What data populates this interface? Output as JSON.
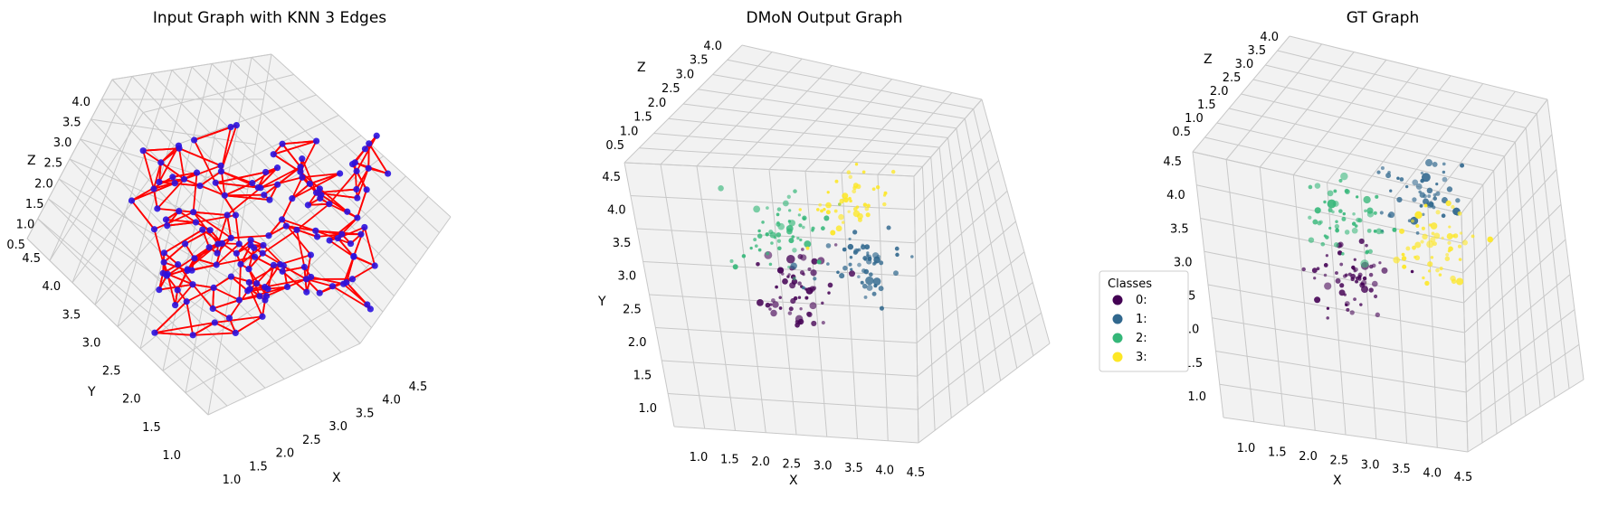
{
  "colors": {
    "background": "#ffffff",
    "pane": "#f2f2f2",
    "grid": "#c8c8c8",
    "edge": "#ff0000",
    "node": "#2a12e0",
    "class_colors": [
      "#440154",
      "#31688e",
      "#35b779",
      "#fde725"
    ]
  },
  "chart_data": [
    {
      "type": "scatter",
      "subtype": "3d-graph",
      "title": "Input Graph with KNN 3 Edges",
      "xlabel": "X",
      "ylabel": "Y",
      "zlabel": "Z",
      "x_ticks": [
        "1.0",
        "1.5",
        "2.0",
        "2.5",
        "3.0",
        "3.5",
        "4.0",
        "4.5"
      ],
      "y_ticks": [
        "1.0",
        "1.5",
        "2.0",
        "2.5",
        "3.0",
        "3.5",
        "4.0",
        "4.5"
      ],
      "z_ticks": [
        "0.5",
        "1.0",
        "1.5",
        "2.0",
        "2.5",
        "3.0",
        "3.5",
        "4.0"
      ],
      "xlim": [
        0.8,
        4.7
      ],
      "ylim": [
        0.8,
        4.7
      ],
      "zlim": [
        0.3,
        4.2
      ],
      "edges": "knn-3",
      "node_count": 150
    },
    {
      "type": "scatter",
      "subtype": "3d",
      "title": "DMoN Output Graph",
      "xlabel": "X",
      "ylabel": "Y",
      "zlabel": "Z",
      "x_ticks": [
        "1.0",
        "1.5",
        "2.0",
        "2.5",
        "3.0",
        "3.5",
        "4.0",
        "4.5"
      ],
      "y_ticks": [
        "1.0",
        "1.5",
        "2.0",
        "2.5",
        "3.0",
        "3.5",
        "4.0",
        "4.5"
      ],
      "z_ticks": [
        "0.5",
        "1.0",
        "1.5",
        "2.0",
        "2.5",
        "3.0",
        "3.5",
        "4.0"
      ],
      "xlim": [
        0.8,
        4.7
      ],
      "ylim": [
        0.8,
        4.7
      ],
      "zlim": [
        0.3,
        4.2
      ],
      "legend": {
        "title": "Classes",
        "placement": "right",
        "entries": [
          "0:",
          "1:",
          "2:",
          "3:"
        ]
      },
      "series": [
        {
          "name": "0:",
          "points": 60,
          "center": [
            2.6,
            2.2,
            1.6
          ]
        },
        {
          "name": "1:",
          "points": 55,
          "center": [
            3.9,
            2.6,
            2.2
          ]
        },
        {
          "name": "2:",
          "points": 55,
          "center": [
            2.3,
            3.5,
            1.9
          ]
        },
        {
          "name": "3:",
          "points": 45,
          "center": [
            3.4,
            4.0,
            3.0
          ]
        }
      ]
    },
    {
      "type": "scatter",
      "subtype": "3d",
      "title": "GT Graph",
      "xlabel": "X",
      "ylabel": "Y",
      "zlabel": "Z",
      "x_ticks": [
        "1.0",
        "1.5",
        "2.0",
        "2.5",
        "3.0",
        "3.5",
        "4.0",
        "4.5"
      ],
      "y_ticks": [
        "1.0",
        "1.5",
        "2.0",
        "2.5",
        "3.0",
        "3.5",
        "4.0",
        "4.5"
      ],
      "z_ticks": [
        "0.5",
        "1.0",
        "1.5",
        "2.0",
        "2.5",
        "3.0",
        "3.5",
        "4.0"
      ],
      "xlim": [
        0.8,
        4.7
      ],
      "ylim": [
        0.8,
        4.7
      ],
      "zlim": [
        0.3,
        4.2
      ],
      "series": [
        {
          "name": "0:",
          "points": 60,
          "center": [
            2.5,
            2.3,
            1.6
          ]
        },
        {
          "name": "1:",
          "points": 50,
          "center": [
            3.8,
            4.0,
            2.8
          ]
        },
        {
          "name": "2:",
          "points": 55,
          "center": [
            2.4,
            3.6,
            2.0
          ]
        },
        {
          "name": "3:",
          "points": 55,
          "center": [
            4.0,
            2.9,
            2.4
          ]
        }
      ]
    }
  ]
}
